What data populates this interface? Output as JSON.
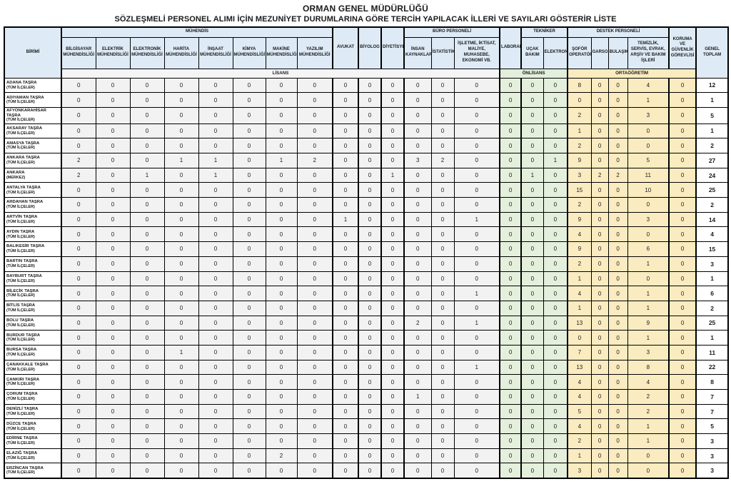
{
  "title": {
    "line1": "ORMAN GENEL MÜDÜRLÜĞÜ",
    "line2": "SÖZLEŞMELİ PERSONEL ALIMI İÇİN MEZUNİYET DURUMLARINA GÖRE TERCİH YAPILACAK İLLERİ VE SAYILARI GÖSTERİR LİSTE"
  },
  "colors": {
    "header_blue": "#DEEBF7",
    "lisans_gray": "#F2F2F2",
    "onlisans_green": "#E2EFDA",
    "ortaogretim_tan": "#FAECC0",
    "border_black": "#000000"
  },
  "table": {
    "unit_header": "BİRİMİ",
    "groups": {
      "muhendis": "MÜHENDİS",
      "buro": "BÜRO PERSONELİ",
      "tekniker": "TEKNİKER",
      "destek": "DESTEK PERSONELİ"
    },
    "columns": {
      "bilgisayar": "BİLGİSAYAR MÜHENDİSLİĞİ",
      "elektrik": "ELEKTRİK MÜHENDİSLİĞİ",
      "elektronik": "ELEKTRONİK MÜHENDİSLİĞİ",
      "harita": "HARİTA MÜHENDİSLİĞİ",
      "insaat": "İNŞAAT MÜHENDİSLİĞİ",
      "kimya": "KİMYA MÜHENDİSLİĞİ",
      "makine": "MAKİNE MÜHENDİSLİĞİ",
      "yazilim": "YAZILIM MÜHENDİSLİĞİ",
      "avukat": "AVUKAT",
      "biyolog": "BİYOLOG",
      "diyetisyen": "DİYETİSYEN",
      "insan_kaynaklari": "İNSAN KAYNAKLARI",
      "istatistik": "İSTATİSTİK",
      "isletme": "İŞLETME, İKTİSAT, MALİYE, MUHASEBE, EKONOMİ VB.",
      "laborant": "LABORANT",
      "ucak_bakim": "UÇAK BAKIM",
      "elektronik_tekniker": "ELEKTRONİK",
      "sofor": "ŞOFÖR OPERATÖR",
      "garson": "GARSON",
      "bulasikci": "BULAŞIKÇI",
      "temizlik": "TEMİZLİK, SERVİS, EVRAK, ARŞİV VE BAKIM İŞLERİ",
      "koruma": "KORUMA VE GÜVENLİK GÖREVLİSİ",
      "genel_toplam": "GENEL TOPLAM"
    },
    "bands": {
      "lisans": "LİSANS",
      "onlisans": "ÖNLİSANS",
      "ortaogretim": "ORTAÖĞRETİM"
    },
    "rows": [
      {
        "unit": "ADANA TAŞRA",
        "sub": "(TÜM İLÇELER)",
        "values": [
          0,
          0,
          0,
          0,
          0,
          0,
          0,
          0,
          0,
          0,
          0,
          0,
          0,
          0,
          0,
          0,
          0,
          8,
          0,
          0,
          4,
          0
        ],
        "total": 12
      },
      {
        "unit": "ADIYAMAN TAŞRA",
        "sub": "(TÜM İLÇELER)",
        "values": [
          0,
          0,
          0,
          0,
          0,
          0,
          0,
          0,
          0,
          0,
          0,
          0,
          0,
          0,
          0,
          0,
          0,
          0,
          0,
          0,
          1,
          0
        ],
        "total": 1
      },
      {
        "unit": "AFYONKARAHİSAR TAŞRA",
        "sub": "(TÜM İLÇELER)",
        "values": [
          0,
          0,
          0,
          0,
          0,
          0,
          0,
          0,
          0,
          0,
          0,
          0,
          0,
          0,
          0,
          0,
          0,
          2,
          0,
          0,
          3,
          0
        ],
        "total": 5
      },
      {
        "unit": "AKSARAY TAŞRA",
        "sub": "(TÜM İLÇELER)",
        "values": [
          0,
          0,
          0,
          0,
          0,
          0,
          0,
          0,
          0,
          0,
          0,
          0,
          0,
          0,
          0,
          0,
          0,
          1,
          0,
          0,
          0,
          0
        ],
        "total": 1
      },
      {
        "unit": "AMASYA TAŞRA",
        "sub": "(TÜM İLÇELER)",
        "values": [
          0,
          0,
          0,
          0,
          0,
          0,
          0,
          0,
          0,
          0,
          0,
          0,
          0,
          0,
          0,
          0,
          0,
          2,
          0,
          0,
          0,
          0
        ],
        "total": 2
      },
      {
        "unit": "ANKARA TAŞRA",
        "sub": "(TÜM İLÇELER)",
        "values": [
          2,
          0,
          0,
          1,
          1,
          0,
          1,
          2,
          0,
          0,
          0,
          3,
          2,
          0,
          0,
          0,
          1,
          9,
          0,
          0,
          5,
          0
        ],
        "total": 27
      },
      {
        "unit": "ANKARA",
        "sub": "(MERKEZ)",
        "values": [
          2,
          0,
          1,
          0,
          1,
          0,
          0,
          0,
          0,
          0,
          1,
          0,
          0,
          0,
          0,
          1,
          0,
          3,
          2,
          2,
          11,
          0
        ],
        "total": 24
      },
      {
        "unit": "ANTALYA TAŞRA",
        "sub": "(TÜM İLÇELER)",
        "values": [
          0,
          0,
          0,
          0,
          0,
          0,
          0,
          0,
          0,
          0,
          0,
          0,
          0,
          0,
          0,
          0,
          0,
          15,
          0,
          0,
          10,
          0
        ],
        "total": 25
      },
      {
        "unit": "ARDAHAN TAŞRA",
        "sub": "(TÜM İLÇELER)",
        "values": [
          0,
          0,
          0,
          0,
          0,
          0,
          0,
          0,
          0,
          0,
          0,
          0,
          0,
          0,
          0,
          0,
          0,
          2,
          0,
          0,
          0,
          0
        ],
        "total": 2
      },
      {
        "unit": "ARTVİN TAŞRA",
        "sub": "(TÜM İLÇELER)",
        "values": [
          0,
          0,
          0,
          0,
          0,
          0,
          0,
          0,
          1,
          0,
          0,
          0,
          0,
          1,
          0,
          0,
          0,
          9,
          0,
          0,
          3,
          0
        ],
        "total": 14
      },
      {
        "unit": "AYDIN TAŞRA",
        "sub": "(TÜM İLÇELER)",
        "values": [
          0,
          0,
          0,
          0,
          0,
          0,
          0,
          0,
          0,
          0,
          0,
          0,
          0,
          0,
          0,
          0,
          0,
          4,
          0,
          0,
          0,
          0
        ],
        "total": 4
      },
      {
        "unit": "BALIKESİR TAŞRA",
        "sub": "(TÜM İLÇELER)",
        "values": [
          0,
          0,
          0,
          0,
          0,
          0,
          0,
          0,
          0,
          0,
          0,
          0,
          0,
          0,
          0,
          0,
          0,
          9,
          0,
          0,
          6,
          0
        ],
        "total": 15
      },
      {
        "unit": "BARTIN TAŞRA",
        "sub": "(TÜM İLÇELER)",
        "values": [
          0,
          0,
          0,
          0,
          0,
          0,
          0,
          0,
          0,
          0,
          0,
          0,
          0,
          0,
          0,
          0,
          0,
          2,
          0,
          0,
          1,
          0
        ],
        "total": 3
      },
      {
        "unit": "BAYBURT TAŞRA",
        "sub": "(TÜM İLÇELER)",
        "values": [
          0,
          0,
          0,
          0,
          0,
          0,
          0,
          0,
          0,
          0,
          0,
          0,
          0,
          0,
          0,
          0,
          0,
          1,
          0,
          0,
          0,
          0
        ],
        "total": 1
      },
      {
        "unit": "BİLECİK TAŞRA",
        "sub": "(TÜM İLÇELER)",
        "values": [
          0,
          0,
          0,
          0,
          0,
          0,
          0,
          0,
          0,
          0,
          0,
          0,
          0,
          1,
          0,
          0,
          0,
          4,
          0,
          0,
          1,
          0
        ],
        "total": 6
      },
      {
        "unit": "BİTLİS TAŞRA",
        "sub": "(TÜM İLÇELER)",
        "values": [
          0,
          0,
          0,
          0,
          0,
          0,
          0,
          0,
          0,
          0,
          0,
          0,
          0,
          0,
          0,
          0,
          0,
          1,
          0,
          0,
          1,
          0
        ],
        "total": 2
      },
      {
        "unit": "BOLU TAŞRA",
        "sub": "(TÜM İLÇELER)",
        "values": [
          0,
          0,
          0,
          0,
          0,
          0,
          0,
          0,
          0,
          0,
          0,
          2,
          0,
          1,
          0,
          0,
          0,
          13,
          0,
          0,
          9,
          0
        ],
        "total": 25
      },
      {
        "unit": "BURDUR TAŞRA",
        "sub": "(TÜM İLÇELER)",
        "values": [
          0,
          0,
          0,
          0,
          0,
          0,
          0,
          0,
          0,
          0,
          0,
          0,
          0,
          0,
          0,
          0,
          0,
          0,
          0,
          0,
          1,
          0
        ],
        "total": 1
      },
      {
        "unit": "BURSA TAŞRA",
        "sub": "(TÜM İLÇELER)",
        "values": [
          0,
          0,
          0,
          1,
          0,
          0,
          0,
          0,
          0,
          0,
          0,
          0,
          0,
          0,
          0,
          0,
          0,
          7,
          0,
          0,
          3,
          0
        ],
        "total": 11
      },
      {
        "unit": "ÇANAKKALE TAŞRA",
        "sub": "(TÜM İLÇELER)",
        "values": [
          0,
          0,
          0,
          0,
          0,
          0,
          0,
          0,
          0,
          0,
          0,
          0,
          0,
          1,
          0,
          0,
          0,
          13,
          0,
          0,
          8,
          0
        ],
        "total": 22
      },
      {
        "unit": "ÇANKIRI TAŞRA",
        "sub": "(TÜM İLÇELER)",
        "values": [
          0,
          0,
          0,
          0,
          0,
          0,
          0,
          0,
          0,
          0,
          0,
          0,
          0,
          0,
          0,
          0,
          0,
          4,
          0,
          0,
          4,
          0
        ],
        "total": 8
      },
      {
        "unit": "ÇORUM TAŞRA",
        "sub": "(TÜM İLÇELER)",
        "values": [
          0,
          0,
          0,
          0,
          0,
          0,
          0,
          0,
          0,
          0,
          0,
          1,
          0,
          0,
          0,
          0,
          0,
          4,
          0,
          0,
          2,
          0
        ],
        "total": 7
      },
      {
        "unit": "DENİZLİ TAŞRA",
        "sub": "(TÜM İLÇELER)",
        "values": [
          0,
          0,
          0,
          0,
          0,
          0,
          0,
          0,
          0,
          0,
          0,
          0,
          0,
          0,
          0,
          0,
          0,
          5,
          0,
          0,
          2,
          0
        ],
        "total": 7
      },
      {
        "unit": "DÜZCE TAŞRA",
        "sub": "(TÜM İLÇELER)",
        "values": [
          0,
          0,
          0,
          0,
          0,
          0,
          0,
          0,
          0,
          0,
          0,
          0,
          0,
          0,
          0,
          0,
          0,
          4,
          0,
          0,
          1,
          0
        ],
        "total": 5
      },
      {
        "unit": "EDİRNE TAŞRA",
        "sub": "(TÜM İLÇELER)",
        "values": [
          0,
          0,
          0,
          0,
          0,
          0,
          0,
          0,
          0,
          0,
          0,
          0,
          0,
          0,
          0,
          0,
          0,
          2,
          0,
          0,
          1,
          0
        ],
        "total": 3
      },
      {
        "unit": "ELAZIĞ TAŞRA",
        "sub": "(TÜM İLÇELER)",
        "values": [
          0,
          0,
          0,
          0,
          0,
          0,
          2,
          0,
          0,
          0,
          0,
          0,
          0,
          0,
          0,
          0,
          0,
          1,
          0,
          0,
          0,
          0
        ],
        "total": 3
      },
      {
        "unit": "ERZİNCAN TAŞRA",
        "sub": "(TÜM İLÇELER)",
        "values": [
          0,
          0,
          0,
          0,
          0,
          0,
          0,
          0,
          0,
          0,
          0,
          0,
          0,
          0,
          0,
          0,
          0,
          3,
          0,
          0,
          0,
          0
        ],
        "total": 3
      }
    ]
  }
}
